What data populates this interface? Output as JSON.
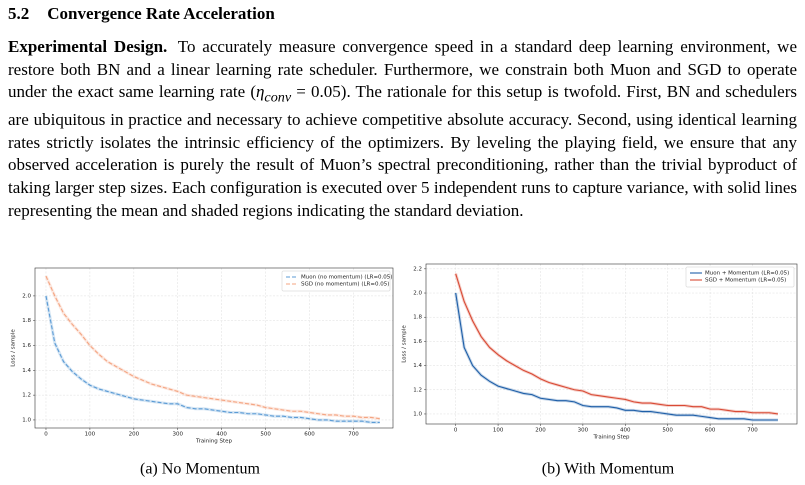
{
  "section": {
    "number": "5.2",
    "title": "Convergence Rate Acceleration"
  },
  "paragraph": {
    "lead": "Experimental Design.",
    "before": "To accurately measure convergence speed in a standard deep learning environment, we restore both BN and a linear learning rate scheduler. Furthermore, we constrain both Muon and SGD to operate under the exact same learning rate (",
    "math": "η",
    "sub": "conv",
    "math_rest": " = 0.05",
    "after": "). The rationale for this setup is twofold. First, BN and schedulers are ubiquitous in practice and necessary to achieve competitive absolute accuracy. Second, using identical learning rates strictly isolates the intrinsic efficiency of the optimizers. By leveling the playing field, we ensure that any observed acceleration is purely the result of Muon’s spectral preconditioning, rather than the trivial byproduct of taking larger step sizes. Each configuration is executed over 5 independent runs to capture variance, with solid lines representing the mean and shaded regions indicating the standard deviation."
  },
  "chart_data": [
    {
      "type": "line",
      "caption": "(a) No Momentum",
      "x_label": "Training Step",
      "y_label": "Loss / sample",
      "linestyle": "dashed",
      "grid": true,
      "legend": "upper right",
      "xlim": [
        -25,
        790
      ],
      "xticks": [
        0,
        100,
        200,
        300,
        400,
        500,
        600,
        700
      ],
      "ylim": [
        0.935,
        2.225
      ],
      "yticks": [
        {
          "value": 1,
          "label": "1.0"
        },
        1.2,
        1.4,
        1.6,
        1.8,
        {
          "value": 2,
          "label": "2.0"
        }
      ],
      "x": [
        0,
        20,
        40,
        60,
        80,
        100,
        120,
        140,
        160,
        180,
        200,
        220,
        240,
        260,
        280,
        300,
        320,
        340,
        360,
        380,
        400,
        420,
        440,
        460,
        480,
        500,
        520,
        540,
        560,
        580,
        600,
        620,
        640,
        660,
        680,
        700,
        720,
        740,
        760
      ],
      "series": [
        {
          "name": "Muon (no momentum) (LR=0.05)",
          "color": "#5b9bd5",
          "values": [
            2.0,
            1.62,
            1.47,
            1.39,
            1.33,
            1.28,
            1.25,
            1.23,
            1.21,
            1.19,
            1.17,
            1.16,
            1.15,
            1.14,
            1.13,
            1.13,
            1.1,
            1.09,
            1.09,
            1.08,
            1.07,
            1.06,
            1.06,
            1.05,
            1.05,
            1.04,
            1.03,
            1.03,
            1.02,
            1.02,
            1.01,
            1.0,
            1.0,
            0.99,
            0.99,
            0.99,
            0.99,
            0.98,
            0.98
          ]
        },
        {
          "name": "SGD (no momentum) (LR=0.05)",
          "color": "#f4a582",
          "values": [
            2.16,
            2.0,
            1.86,
            1.77,
            1.69,
            1.6,
            1.53,
            1.47,
            1.43,
            1.39,
            1.35,
            1.32,
            1.29,
            1.27,
            1.25,
            1.23,
            1.2,
            1.19,
            1.18,
            1.17,
            1.16,
            1.15,
            1.14,
            1.13,
            1.12,
            1.1,
            1.09,
            1.08,
            1.07,
            1.07,
            1.06,
            1.05,
            1.04,
            1.04,
            1.03,
            1.03,
            1.02,
            1.02,
            1.01
          ]
        }
      ]
    },
    {
      "type": "line",
      "caption": "(b) With Momentum",
      "x_label": "Training Step",
      "y_label": "Loss / sample",
      "linestyle": "solid",
      "grid": true,
      "legend": "upper right",
      "xlim": [
        -70,
        805
      ],
      "xticks": [
        0,
        100,
        200,
        300,
        400,
        500,
        600,
        700
      ],
      "ylim": [
        0.917,
        2.24
      ],
      "yticks": [
        {
          "value": 1,
          "label": "1.0"
        },
        1.2,
        1.4,
        1.6,
        1.8,
        {
          "value": 2,
          "label": "2.0"
        },
        2.2
      ],
      "x": [
        0,
        20,
        40,
        60,
        80,
        100,
        120,
        140,
        160,
        180,
        200,
        220,
        240,
        260,
        280,
        300,
        320,
        340,
        360,
        380,
        400,
        420,
        440,
        460,
        480,
        500,
        520,
        540,
        560,
        580,
        600,
        620,
        640,
        660,
        680,
        700,
        720,
        740,
        760
      ],
      "series": [
        {
          "name": "Muon + Momentum (LR=0.05)",
          "color": "#1f5fa8",
          "values": [
            2.0,
            1.55,
            1.4,
            1.32,
            1.27,
            1.23,
            1.21,
            1.19,
            1.17,
            1.16,
            1.13,
            1.12,
            1.11,
            1.11,
            1.1,
            1.07,
            1.06,
            1.06,
            1.06,
            1.05,
            1.03,
            1.03,
            1.02,
            1.02,
            1.01,
            1.0,
            0.99,
            0.99,
            0.99,
            0.98,
            0.97,
            0.96,
            0.96,
            0.96,
            0.96,
            0.95,
            0.95,
            0.95,
            0.95
          ]
        },
        {
          "name": "SGD + Momentum (LR=0.05)",
          "color": "#d94a35",
          "values": [
            2.16,
            1.93,
            1.77,
            1.64,
            1.55,
            1.49,
            1.44,
            1.4,
            1.36,
            1.33,
            1.29,
            1.26,
            1.24,
            1.22,
            1.2,
            1.19,
            1.16,
            1.15,
            1.14,
            1.13,
            1.12,
            1.1,
            1.09,
            1.09,
            1.08,
            1.07,
            1.07,
            1.07,
            1.06,
            1.06,
            1.04,
            1.04,
            1.03,
            1.02,
            1.02,
            1.01,
            1.01,
            1.01,
            1.0
          ]
        }
      ]
    }
  ]
}
